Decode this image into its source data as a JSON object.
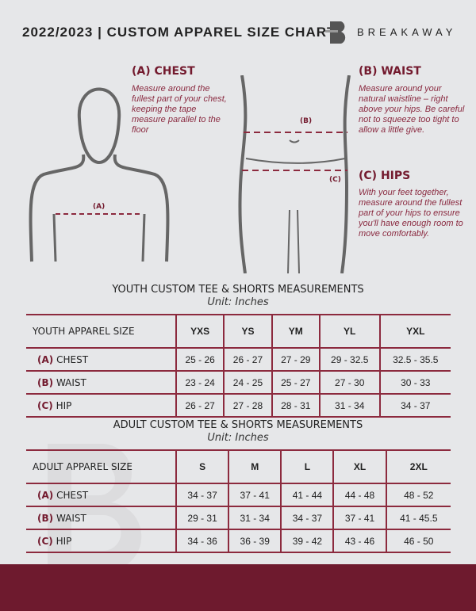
{
  "header": {
    "title": "2022/2023  |  CUSTOM APPAREL SIZE CHART",
    "brand": "BREAKAWAY"
  },
  "measures": {
    "chest": {
      "heading": "(A) CHEST",
      "marker": "(A)",
      "desc": "Measure around the fullest part of your chest, keeping the tape measure parallel to the floor"
    },
    "waist": {
      "heading": "(B) WAIST",
      "marker": "(B)",
      "desc": "Measure around your natural waistline – right above your hips. Be careful not to squeeze too tight to allow a little give."
    },
    "hips": {
      "heading": "(C) HIPS",
      "marker": "(C)",
      "desc": "With your feet together, measure around the fullest part of your hips to ensure you'll have enough room to move comfortably."
    }
  },
  "youth": {
    "title": "YOUTH CUSTOM TEE & SHORTS MEASUREMENTS",
    "unit": "Unit: Inches",
    "size_label": "YOUTH APPAREL SIZE",
    "sizes": [
      "YXS",
      "YS",
      "YM",
      "YL",
      "YXL"
    ],
    "rows": [
      {
        "label": "(A)",
        "name": "CHEST",
        "values": [
          "25 - 26",
          "26 - 27",
          "27 - 29",
          "29 - 32.5",
          "32.5 - 35.5"
        ]
      },
      {
        "label": "(B)",
        "name": "WAIST",
        "values": [
          "23 - 24",
          "24 - 25",
          "25 - 27",
          "27 - 30",
          "30 - 33"
        ]
      },
      {
        "label": "(C)",
        "name": "HIP",
        "values": [
          "26 - 27",
          "27 - 28",
          "28 - 31",
          "31 - 34",
          "34 - 37"
        ]
      }
    ]
  },
  "adult": {
    "title": "ADULT CUSTOM TEE & SHORTS MEASUREMENTS",
    "unit": "Unit: Inches",
    "size_label": "ADULT APPAREL SIZE",
    "sizes": [
      "S",
      "M",
      "L",
      "XL",
      "2XL"
    ],
    "rows": [
      {
        "label": "(A)",
        "name": "CHEST",
        "values": [
          "34 - 37",
          "37 - 41",
          "41 - 44",
          "44 - 48",
          "48 - 52"
        ]
      },
      {
        "label": "(B)",
        "name": "WAIST",
        "values": [
          "29 - 31",
          "31 - 34",
          "34 - 37",
          "37 - 41",
          "41 - 45.5"
        ]
      },
      {
        "label": "(C)",
        "name": "HIP",
        "values": [
          "34 - 36",
          "36 - 39",
          "39 - 42",
          "43 - 46",
          "46 - 50"
        ]
      }
    ]
  },
  "colors": {
    "accent": "#6e1a2e",
    "background": "#e6e7e9"
  }
}
